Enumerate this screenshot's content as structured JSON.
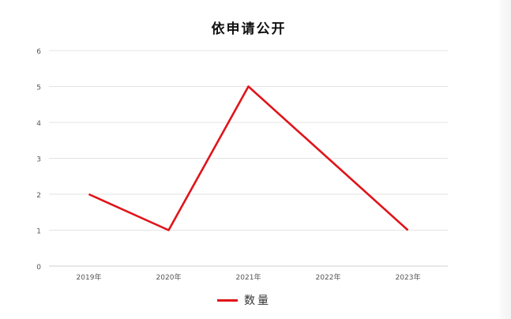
{
  "chart_data": {
    "type": "line",
    "title": "依申请公开",
    "categories": [
      "2019年",
      "2020年",
      "2021年",
      "2022年",
      "2023年"
    ],
    "series": [
      {
        "name": "数量",
        "values": [
          2,
          1,
          5,
          3,
          1
        ],
        "color": "#e0141a"
      }
    ],
    "ylim": [
      0,
      6
    ],
    "yticks": [
      0,
      1,
      2,
      3,
      4,
      5,
      6
    ],
    "grid": true,
    "legend": "bottom"
  }
}
